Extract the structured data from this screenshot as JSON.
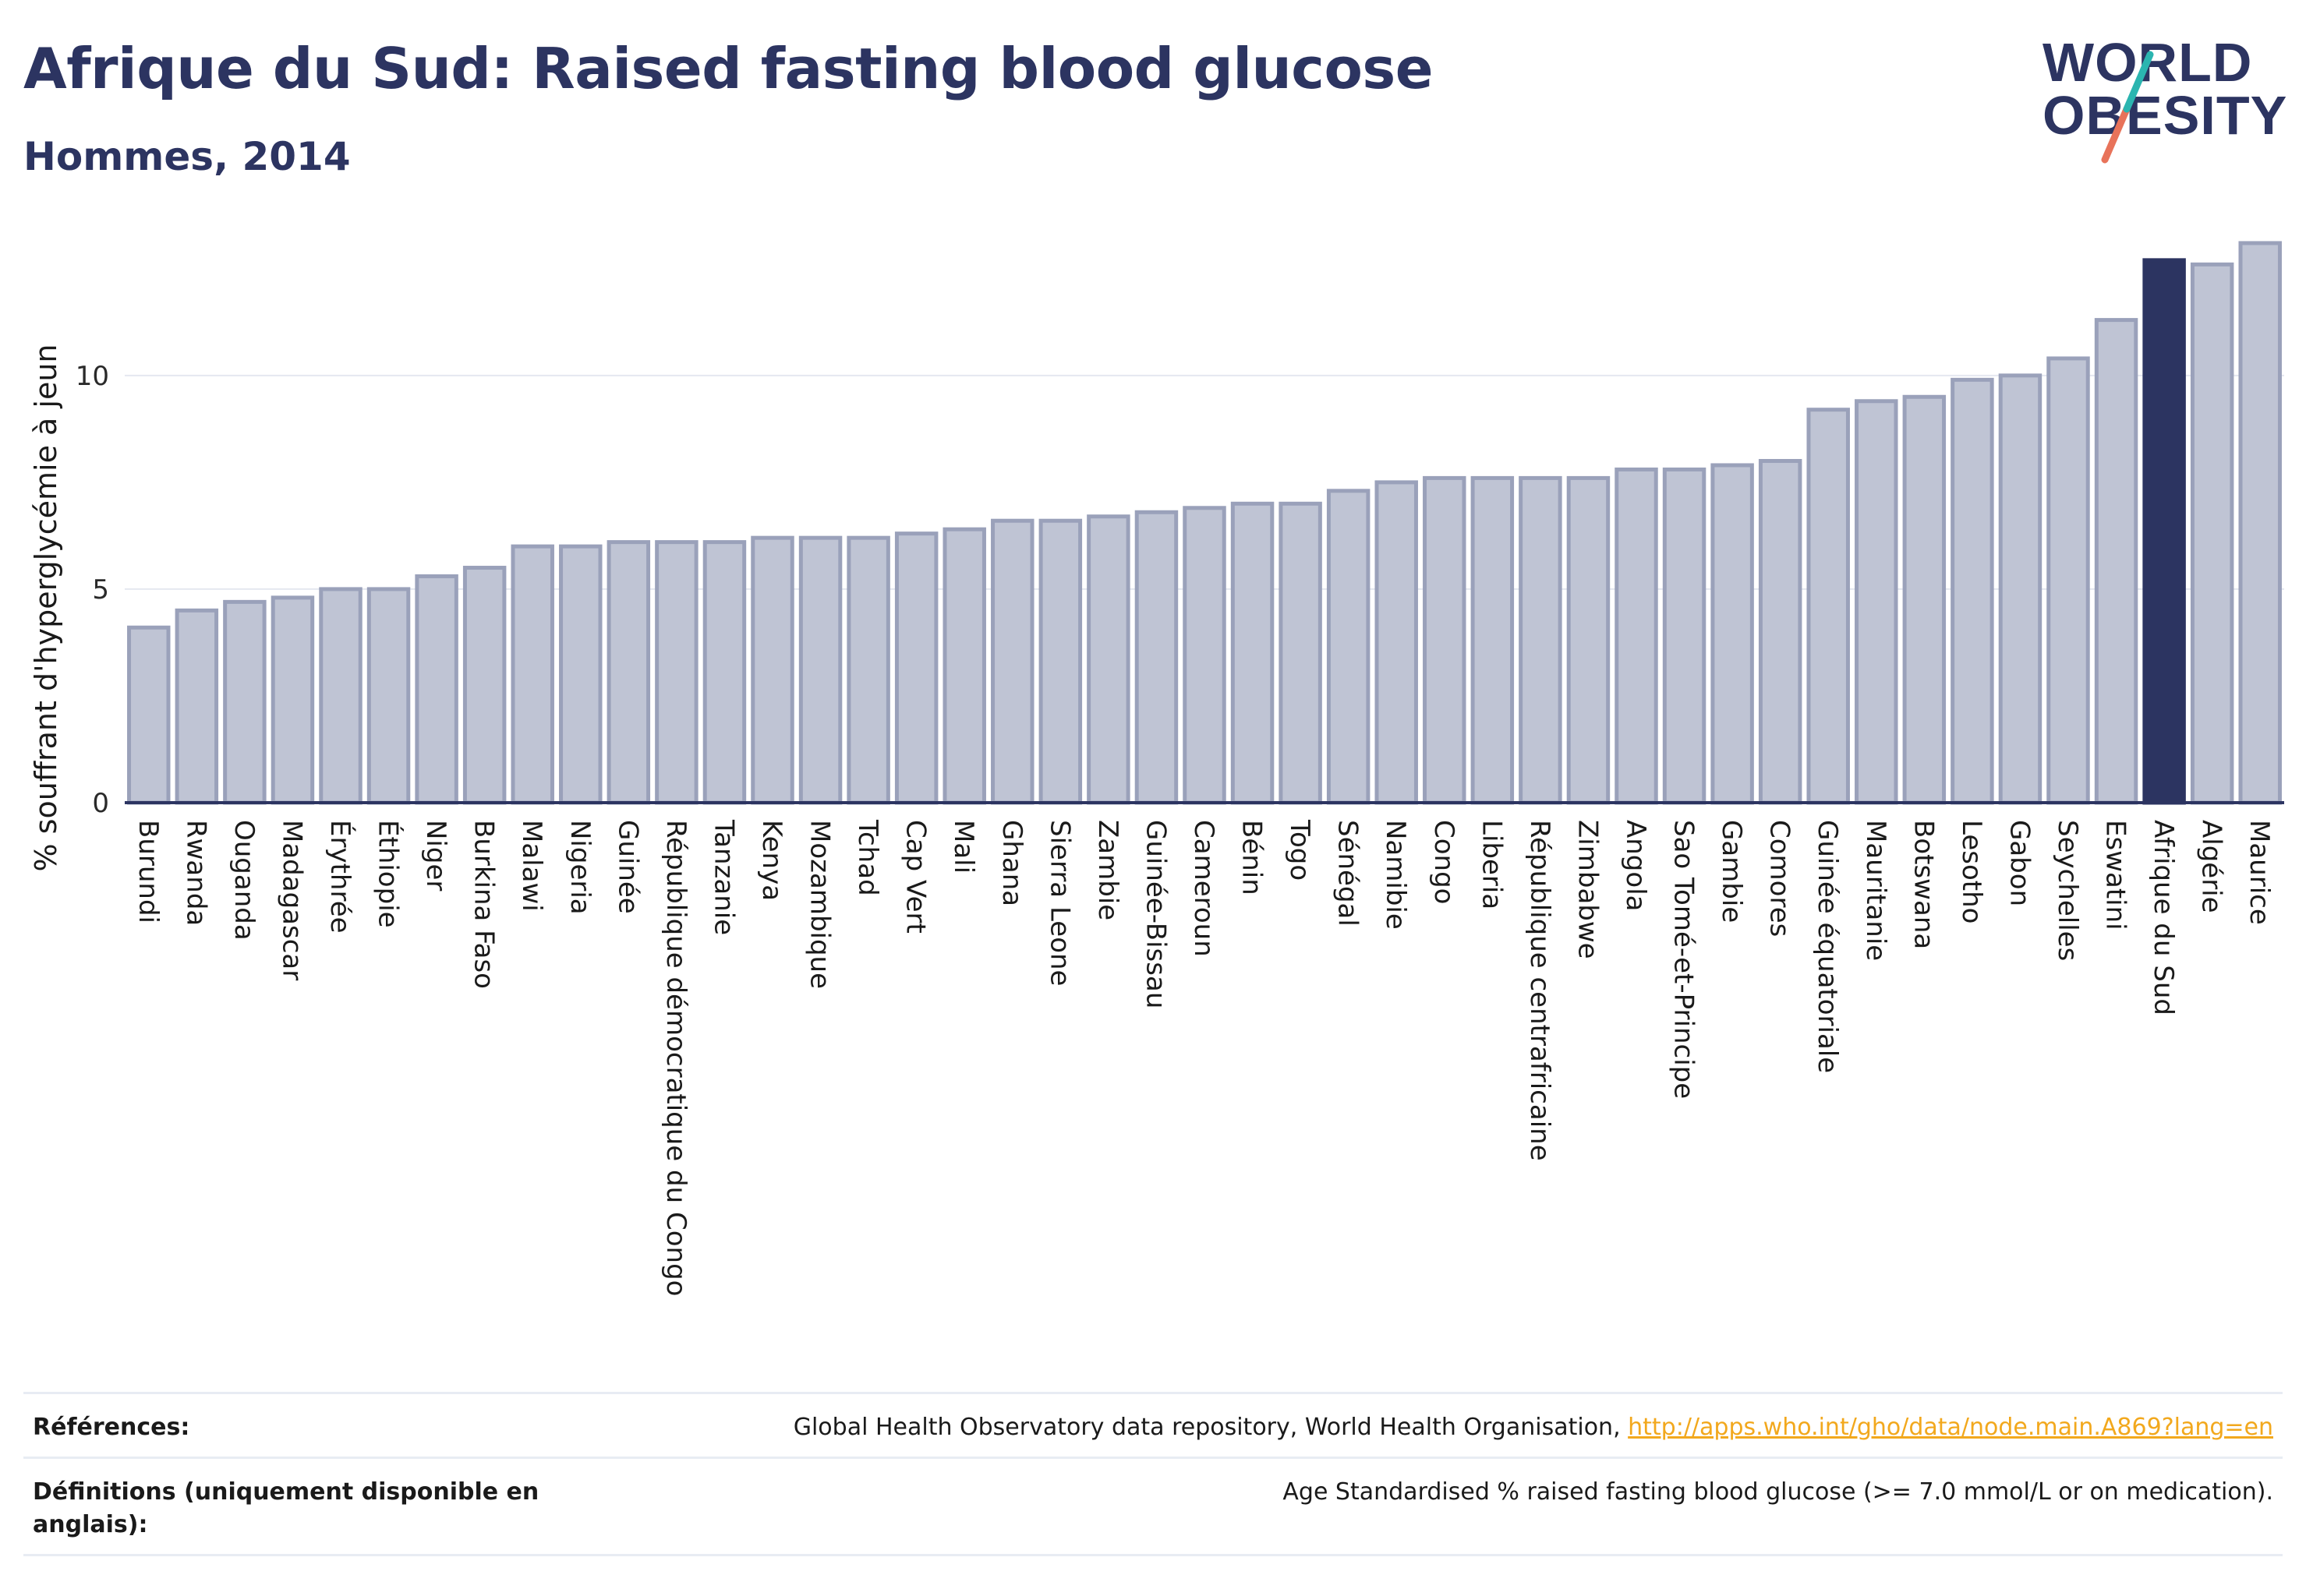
{
  "header": {
    "title": "Afrique du Sud: Raised fasting blood glucose",
    "subtitle": "Hommes, 2014"
  },
  "logo": {
    "line1": "WORLD",
    "line2": "OBESITY"
  },
  "chart_data": {
    "type": "bar",
    "ylabel": "% souffrant d'hyperglycémie à jeun",
    "xlabel": "",
    "ylim": [
      0,
      13.5
    ],
    "yticks": [
      0,
      5,
      10
    ],
    "grid": true,
    "highlight": "Afrique du Sud",
    "colors": {
      "bar": "#bfc4d4",
      "bar_edge": "#9aa1ba",
      "highlight": "#2c3461",
      "axis": "#2c3461",
      "grid": "#e5e8f0"
    },
    "categories": [
      "Burundi",
      "Rwanda",
      "Ouganda",
      "Madagascar",
      "Érythrée",
      "Éthiopie",
      "Niger",
      "Burkina Faso",
      "Malawi",
      "Nigeria",
      "Guinée",
      "République démocratique du Congo",
      "Tanzanie",
      "Kenya",
      "Mozambique",
      "Tchad",
      "Cap Vert",
      "Mali",
      "Ghana",
      "Sierra Leone",
      "Zambie",
      "Guinée-Bissau",
      "Cameroun",
      "Bénin",
      "Togo",
      "Sénégal",
      "Namibie",
      "Congo",
      "Liberia",
      "République centrafricaine",
      "Zimbabwe",
      "Angola",
      "Sao Tomé-et-Principe",
      "Gambie",
      "Comores",
      "Guinée équatoriale",
      "Mauritanie",
      "Botswana",
      "Lesotho",
      "Gabon",
      "Seychelles",
      "Eswatini",
      "Afrique du Sud",
      "Algérie",
      "Maurice"
    ],
    "values": [
      4.1,
      4.5,
      4.7,
      4.8,
      5.0,
      5.0,
      5.3,
      5.5,
      6.0,
      6.0,
      6.1,
      6.1,
      6.1,
      6.2,
      6.2,
      6.2,
      6.3,
      6.4,
      6.6,
      6.6,
      6.7,
      6.8,
      6.9,
      7.0,
      7.0,
      7.3,
      7.5,
      7.6,
      7.6,
      7.6,
      7.6,
      7.8,
      7.8,
      7.9,
      8.0,
      9.2,
      9.4,
      9.5,
      9.9,
      10.0,
      10.4,
      11.3,
      12.7,
      12.6,
      13.1
    ]
  },
  "footer": {
    "references_label": "Références:",
    "references_text": "Global Health Observatory data repository, World Health Organisation, ",
    "references_link": "http://apps.who.int/gho/data/node.main.A869?lang=en",
    "definitions_label": "Définitions (uniquement disponible en anglais):",
    "definitions_text": "Age Standardised % raised fasting blood glucose (>= 7.0 mmol/L or on medication)."
  }
}
